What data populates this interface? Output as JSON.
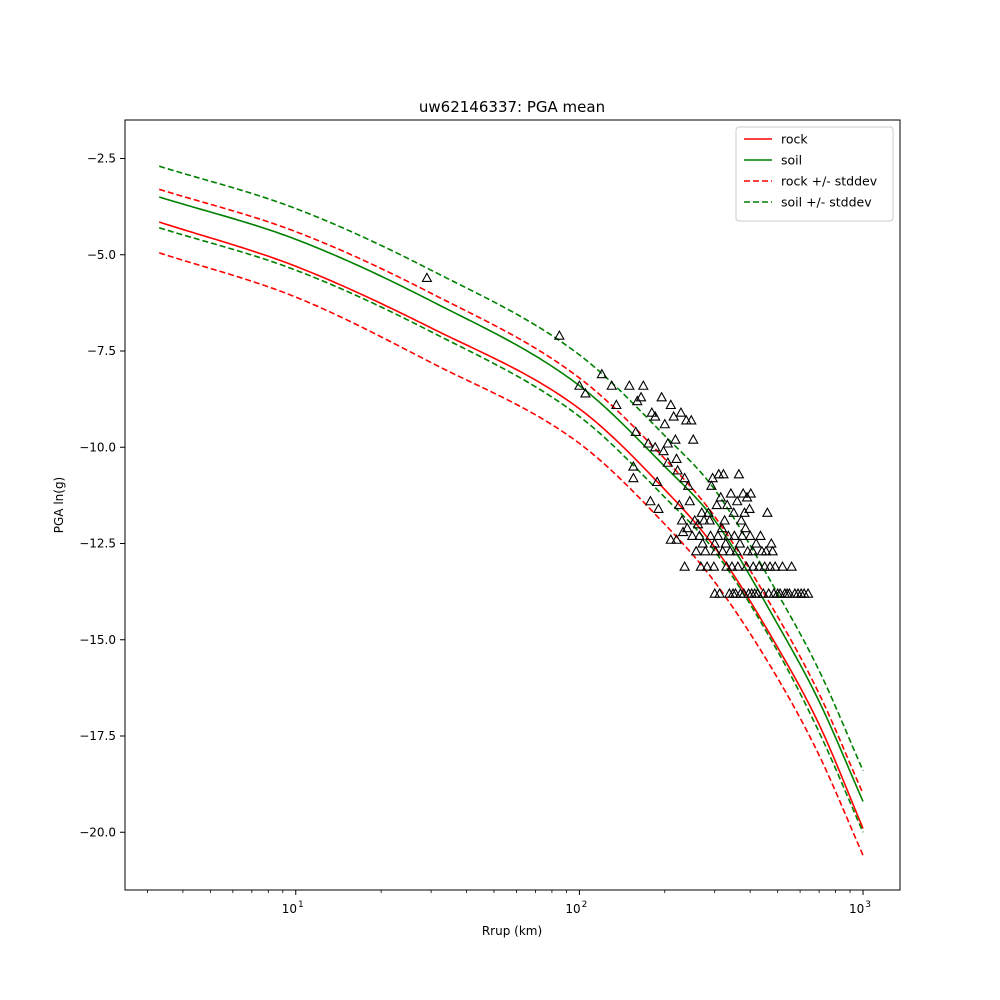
{
  "chart_data": {
    "type": "line",
    "title": "uw62146337: PGA mean",
    "xlabel": "Rrup (km)",
    "ylabel": "PGA ln(g)",
    "x_scale": "log",
    "xlim": [
      2.5,
      1350
    ],
    "ylim": [
      -21.5,
      -1.5
    ],
    "x_major_ticks": [
      10,
      100,
      1000
    ],
    "x_tick_labels": [
      {
        "base": "10",
        "exp": "1"
      },
      {
        "base": "10",
        "exp": "2"
      },
      {
        "base": "10",
        "exp": "3"
      }
    ],
    "y_ticks": [
      -2.5,
      -5.0,
      -7.5,
      -10.0,
      -12.5,
      -15.0,
      -17.5,
      -20.0
    ],
    "y_tick_labels": [
      "−2.5",
      "−5.0",
      "−7.5",
      "−10.0",
      "−12.5",
      "−15.0",
      "−17.5",
      "−20.0"
    ],
    "grid": false,
    "legend_position": "top-right",
    "series": [
      {
        "name": "rock",
        "color": "#ff0000",
        "dash": "solid",
        "points": [
          [
            3.3,
            -4.15
          ],
          [
            10,
            -5.3
          ],
          [
            30,
            -6.9
          ],
          [
            100,
            -9.0
          ],
          [
            200,
            -11.1
          ],
          [
            300,
            -12.6
          ],
          [
            500,
            -15.2
          ],
          [
            700,
            -17.2
          ],
          [
            1000,
            -19.9
          ]
        ]
      },
      {
        "name": "soil",
        "color": "#008000",
        "dash": "solid",
        "points": [
          [
            3.3,
            -3.5
          ],
          [
            10,
            -4.6
          ],
          [
            30,
            -6.2
          ],
          [
            100,
            -8.4
          ],
          [
            200,
            -10.5
          ],
          [
            300,
            -11.9
          ],
          [
            500,
            -14.6
          ],
          [
            700,
            -16.6
          ],
          [
            1000,
            -19.2
          ]
        ]
      },
      {
        "name": "rock +/- stddev",
        "color": "#ff0000",
        "dash": "dashed",
        "points": [
          [
            3.3,
            -3.3
          ],
          [
            10,
            -4.4
          ],
          [
            30,
            -6.0
          ],
          [
            100,
            -8.2
          ],
          [
            200,
            -10.3
          ],
          [
            300,
            -11.8
          ],
          [
            500,
            -14.4
          ],
          [
            700,
            -16.4
          ],
          [
            1000,
            -19.0
          ]
        ]
      },
      {
        "name": "",
        "color": "#ff0000",
        "dash": "dashed",
        "legend": false,
        "points": [
          [
            3.3,
            -4.95
          ],
          [
            10,
            -6.1
          ],
          [
            30,
            -7.8
          ],
          [
            100,
            -9.9
          ],
          [
            200,
            -12.0
          ],
          [
            300,
            -13.5
          ],
          [
            500,
            -16.0
          ],
          [
            700,
            -18.0
          ],
          [
            1000,
            -20.6
          ]
        ]
      },
      {
        "name": "soil +/- stddev",
        "color": "#008000",
        "dash": "dashed",
        "points": [
          [
            3.3,
            -2.7
          ],
          [
            10,
            -3.8
          ],
          [
            30,
            -5.4
          ],
          [
            100,
            -7.6
          ],
          [
            200,
            -9.7
          ],
          [
            300,
            -11.1
          ],
          [
            500,
            -13.8
          ],
          [
            700,
            -15.8
          ],
          [
            1000,
            -18.4
          ]
        ]
      },
      {
        "name": "",
        "color": "#008000",
        "dash": "dashed",
        "legend": false,
        "points": [
          [
            3.3,
            -4.3
          ],
          [
            10,
            -5.4
          ],
          [
            30,
            -7.0
          ],
          [
            100,
            -9.2
          ],
          [
            200,
            -11.3
          ],
          [
            300,
            -12.7
          ],
          [
            500,
            -15.3
          ],
          [
            700,
            -17.4
          ],
          [
            1000,
            -20.0
          ]
        ]
      }
    ],
    "observations": {
      "marker": "triangle",
      "color": "#000000",
      "points": [
        [
          29,
          -5.6
        ],
        [
          85,
          -7.1
        ],
        [
          100,
          -8.4
        ],
        [
          105,
          -8.6
        ],
        [
          120,
          -8.1
        ],
        [
          130,
          -8.4
        ],
        [
          135,
          -8.9
        ],
        [
          150,
          -8.4
        ],
        [
          155,
          -10.5
        ],
        [
          155,
          -10.8
        ],
        [
          158,
          -9.6
        ],
        [
          160,
          -8.8
        ],
        [
          165,
          -8.7
        ],
        [
          168,
          -8.4
        ],
        [
          175,
          -9.9
        ],
        [
          178,
          -11.4
        ],
        [
          180,
          -9.1
        ],
        [
          185,
          -10.0
        ],
        [
          185,
          -9.2
        ],
        [
          188,
          -10.9
        ],
        [
          190,
          -11.6
        ],
        [
          195,
          -8.7
        ],
        [
          198,
          -10.1
        ],
        [
          200,
          -9.4
        ],
        [
          205,
          -9.9
        ],
        [
          205,
          -10.4
        ],
        [
          210,
          -8.9
        ],
        [
          210,
          -12.4
        ],
        [
          215,
          -9.2
        ],
        [
          218,
          -9.8
        ],
        [
          220,
          -10.3
        ],
        [
          220,
          -12.4
        ],
        [
          222,
          -10.6
        ],
        [
          225,
          -11.5
        ],
        [
          228,
          -9.1
        ],
        [
          230,
          -11.9
        ],
        [
          232,
          -12.2
        ],
        [
          235,
          -10.8
        ],
        [
          235,
          -13.1
        ],
        [
          238,
          -9.3
        ],
        [
          240,
          -12.1
        ],
        [
          242,
          -11.0
        ],
        [
          245,
          -11.4
        ],
        [
          248,
          -9.3
        ],
        [
          250,
          -12.3
        ],
        [
          252,
          -9.8
        ],
        [
          255,
          -11.9
        ],
        [
          258,
          -12.7
        ],
        [
          262,
          -12.0
        ],
        [
          265,
          -12.3
        ],
        [
          268,
          -13.1
        ],
        [
          270,
          -11.7
        ],
        [
          272,
          -12.5
        ],
        [
          275,
          -11.9
        ],
        [
          278,
          -12.7
        ],
        [
          282,
          -13.1
        ],
        [
          285,
          -11.7
        ],
        [
          288,
          -11.9
        ],
        [
          290,
          -12.3
        ],
        [
          292,
          -11.0
        ],
        [
          295,
          -10.8
        ],
        [
          298,
          -13.1
        ],
        [
          300,
          -12.5
        ],
        [
          300,
          -13.8
        ],
        [
          302,
          -12.7
        ],
        [
          305,
          -11.5
        ],
        [
          308,
          -12.3
        ],
        [
          310,
          -10.7
        ],
        [
          312,
          -13.8
        ],
        [
          315,
          -11.3
        ],
        [
          318,
          -12.1
        ],
        [
          320,
          -12.7
        ],
        [
          322,
          -10.7
        ],
        [
          325,
          -11.9
        ],
        [
          328,
          -12.5
        ],
        [
          330,
          -13.1
        ],
        [
          332,
          -11.5
        ],
        [
          335,
          -12.3
        ],
        [
          338,
          -13.8
        ],
        [
          340,
          -12.7
        ],
        [
          342,
          -11.2
        ],
        [
          345,
          -13.1
        ],
        [
          348,
          -13.8
        ],
        [
          350,
          -11.7
        ],
        [
          352,
          -12.3
        ],
        [
          355,
          -13.8
        ],
        [
          358,
          -12.7
        ],
        [
          360,
          -11.4
        ],
        [
          362,
          -13.1
        ],
        [
          365,
          -10.7
        ],
        [
          368,
          -12.5
        ],
        [
          370,
          -13.8
        ],
        [
          372,
          -11.9
        ],
        [
          375,
          -12.3
        ],
        [
          378,
          -11.2
        ],
        [
          380,
          -13.8
        ],
        [
          382,
          -11.7
        ],
        [
          385,
          -12.1
        ],
        [
          388,
          -13.1
        ],
        [
          390,
          -11.3
        ],
        [
          392,
          -12.7
        ],
        [
          395,
          -13.8
        ],
        [
          398,
          -11.6
        ],
        [
          400,
          -12.3
        ],
        [
          402,
          -11.2
        ],
        [
          405,
          -13.8
        ],
        [
          408,
          -12.7
        ],
        [
          410,
          -13.1
        ],
        [
          415,
          -13.8
        ],
        [
          420,
          -12.5
        ],
        [
          425,
          -13.8
        ],
        [
          430,
          -13.1
        ],
        [
          435,
          -12.3
        ],
        [
          440,
          -12.7
        ],
        [
          445,
          -13.8
        ],
        [
          450,
          -13.1
        ],
        [
          455,
          -12.7
        ],
        [
          460,
          -11.7
        ],
        [
          465,
          -13.8
        ],
        [
          470,
          -13.1
        ],
        [
          475,
          -12.5
        ],
        [
          480,
          -12.7
        ],
        [
          485,
          -13.8
        ],
        [
          490,
          -13.1
        ],
        [
          500,
          -13.8
        ],
        [
          510,
          -13.8
        ],
        [
          520,
          -13.1
        ],
        [
          530,
          -13.8
        ],
        [
          540,
          -13.8
        ],
        [
          550,
          -13.8
        ],
        [
          560,
          -13.1
        ],
        [
          575,
          -13.8
        ],
        [
          590,
          -13.8
        ],
        [
          605,
          -13.8
        ],
        [
          620,
          -13.8
        ],
        [
          640,
          -13.8
        ]
      ]
    }
  }
}
